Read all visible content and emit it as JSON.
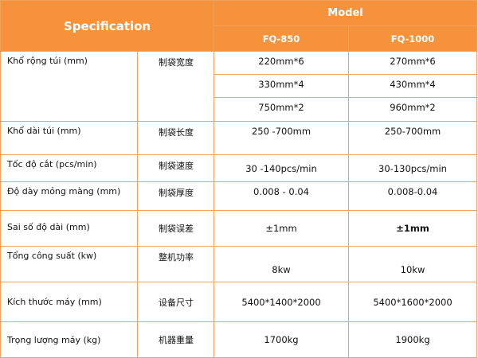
{
  "header": {
    "title": "Specification",
    "model_label": "Model",
    "models": [
      "FQ-850",
      "FQ-1000"
    ]
  },
  "rows": [
    {
      "vi": "Khổ rộng túi (mm)",
      "cn": "制袋宽度",
      "values": [
        [
          "220mm*6",
          "270mm*6"
        ],
        [
          "330mm*4",
          "430mm*4"
        ],
        [
          "750mm*2",
          "960mm*2"
        ]
      ]
    },
    {
      "vi": "Khổ dài túi (mm)",
      "cn": "制袋长度",
      "values": [
        "250 -700mm",
        "250-700mm"
      ]
    },
    {
      "vi": "Tốc độ cắt (pcs/min)",
      "cn": "制袋速度",
      "values": [
        "30 -140pcs/min",
        "30-130pcs/min"
      ]
    },
    {
      "vi": "Độ dày mỏng màng (mm)",
      "cn": "制袋厚度",
      "values": [
        "0.008 - 0.04",
        "0.008-0.04"
      ]
    },
    {
      "vi": "Sai số độ dài (mm)",
      "cn": "制袋误差",
      "values": [
        "±1mm",
        "±1mm"
      ]
    },
    {
      "vi": "Tổng công suất (kw)",
      "cn": "整机功率",
      "values": [
        "8kw",
        "10kw"
      ]
    },
    {
      "vi": "Kích thước máy (mm)",
      "cn": "设备尺寸",
      "values": [
        "5400*1400*2000",
        "5400*1600*2000"
      ]
    },
    {
      "vi": "Trọng lượng máy (kg)",
      "cn": "机器重量",
      "values": [
        "1700kg",
        "1900kg"
      ]
    }
  ],
  "colors": {
    "header_bg": "#f5923b",
    "border": "#f2a35a",
    "header_text": "#ffffff"
  }
}
